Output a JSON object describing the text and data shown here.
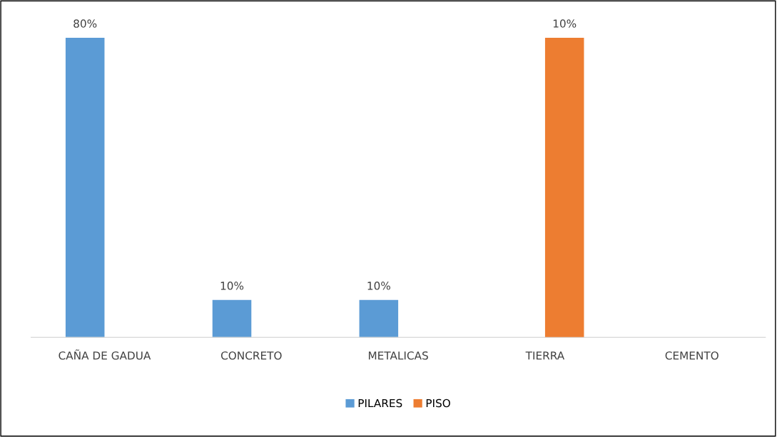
{
  "chart_data": {
    "type": "bar",
    "categories": [
      "CAÑA DE GADUA",
      "CONCRETO",
      "METALICAS",
      "TIERRA",
      "CEMENTO"
    ],
    "series": [
      {
        "name": "PILARES",
        "color": "#5b9bd5",
        "values": [
          80,
          10,
          10,
          null,
          null
        ],
        "value_labels": [
          "80%",
          "10%",
          "10%",
          null,
          null
        ]
      },
      {
        "name": "PISO",
        "color": "#ed7d31",
        "values": [
          null,
          null,
          null,
          10,
          null
        ],
        "value_labels": [
          null,
          null,
          null,
          "10%",
          null
        ],
        "axis": "y2"
      }
    ],
    "legend": "bottom",
    "tick_labels": "x"
  }
}
